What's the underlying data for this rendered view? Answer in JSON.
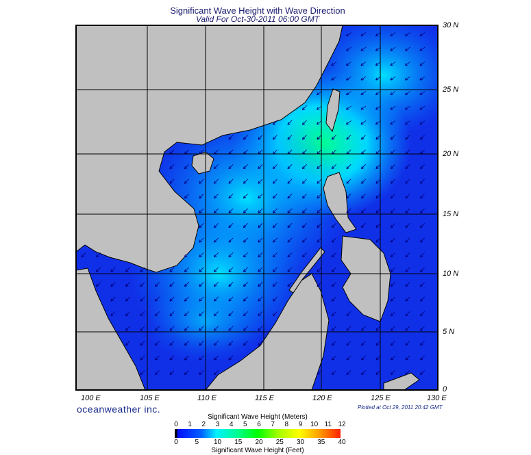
{
  "header": {
    "title": "Significant Wave Height with Wave Direction",
    "subtitle": "Valid For Oct-30-2011 06:00 GMT"
  },
  "axes": {
    "lat_labels": [
      "30 N",
      "25 N",
      "20 N",
      "15 N",
      "10 N",
      "5 N",
      "0"
    ],
    "lon_labels": [
      "100 E",
      "105 E",
      "110 E",
      "115 E",
      "120 E",
      "125 E",
      "130 E"
    ]
  },
  "footer": {
    "brand": "oceanweather inc.",
    "plotted": "Plotted at Oct 29, 2011 20:42 GMT"
  },
  "colorbar": {
    "title_top": "Significant Wave Height (Meters)",
    "title_bottom": "Significant Wave Height (Feet)",
    "meters": [
      "0",
      "1",
      "2",
      "3",
      "4",
      "5",
      "6",
      "7",
      "8",
      "9",
      "10",
      "11",
      "12"
    ],
    "feet": [
      "0",
      "5",
      "10",
      "15",
      "20",
      "25",
      "30",
      "35",
      "40"
    ]
  },
  "colors": {
    "land": "#c0c0c0",
    "ocean_low": "#1030e8",
    "ocean_mid": "#00c8ff",
    "ocean_high": "#00ff90",
    "arrow": "#000080"
  }
}
